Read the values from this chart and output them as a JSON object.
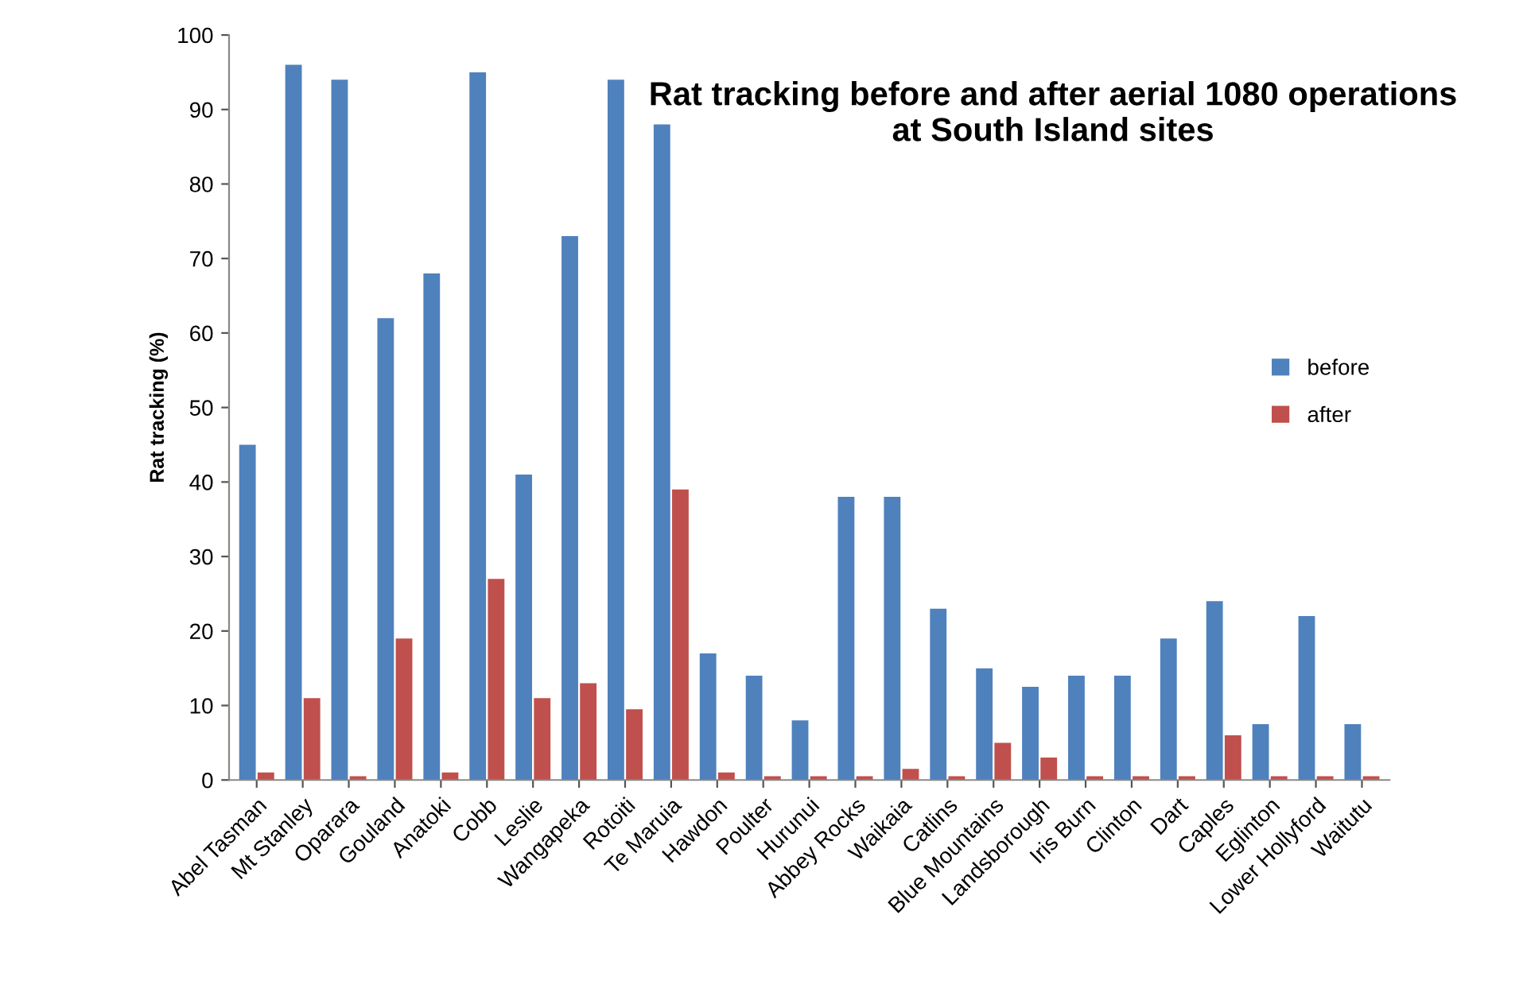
{
  "chart_data": {
    "type": "bar",
    "title": "Rat tracking before and after aerial 1080 operations\nat South Island sites",
    "ylabel": "Rat tracking (%)",
    "categories": [
      "Abel Tasman",
      "Mt Stanley",
      "Oparara",
      "Gouland",
      "Anatoki",
      "Cobb",
      "Leslie",
      "Wangapeka",
      "Rotoiti",
      "Te Maruia",
      "Hawdon",
      "Poulter",
      "Hurunui",
      "Abbey Rocks",
      "Waikaia",
      "Catlins",
      "Blue Mountains",
      "Landsborough",
      "Iris Burn",
      "Clinton",
      "Dart",
      "Caples",
      "Eglinton",
      "Lower Hollyford",
      "Waitutu"
    ],
    "series": [
      {
        "name": "before",
        "color": "#4f81bd",
        "values": [
          45,
          96,
          94,
          62,
          68,
          95,
          41,
          73,
          94,
          88,
          17,
          14,
          8,
          38,
          38,
          23,
          15,
          12.5,
          14,
          14,
          19,
          24,
          7.5,
          22,
          7.5
        ]
      },
      {
        "name": "after",
        "color": "#c0504d",
        "values": [
          1,
          11,
          0.5,
          19,
          1,
          27,
          11,
          13,
          9.5,
          39,
          1,
          0.5,
          0.5,
          0.5,
          1.5,
          0.5,
          5,
          3,
          0.5,
          0.5,
          0.5,
          6,
          0.5,
          0.5,
          0.5
        ]
      }
    ],
    "ylim": [
      0,
      100
    ],
    "yticks": [
      0,
      10,
      20,
      30,
      40,
      50,
      60,
      70,
      80,
      90,
      100
    ],
    "legend": "right"
  }
}
